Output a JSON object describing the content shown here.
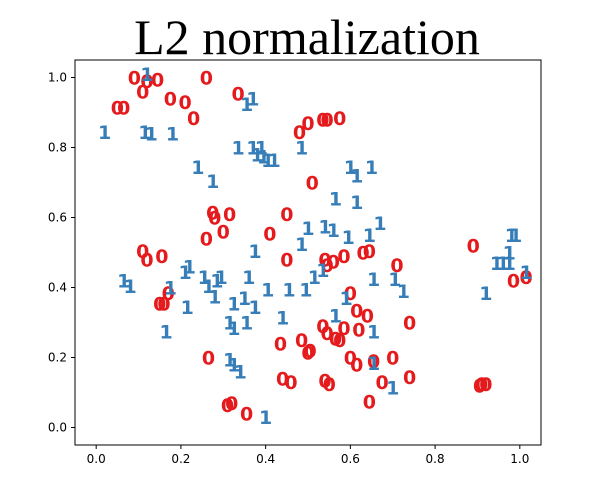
{
  "chart_data": {
    "type": "scatter",
    "title": "L2 normalization",
    "xlabel": "",
    "ylabel": "",
    "xlim": [
      -0.05,
      1.05
    ],
    "ylim": [
      -0.05,
      1.05
    ],
    "xticks": [
      "0.0",
      "0.2",
      "0.4",
      "0.6",
      "0.8",
      "1.0"
    ],
    "yticks": [
      "0.0",
      "0.2",
      "0.4",
      "0.6",
      "0.8",
      "1.0"
    ],
    "grid": false,
    "legend": "none",
    "marker_style": "text glyph of class label",
    "series": [
      {
        "label_text": "0",
        "color": "#e41a1c",
        "points": [
          [
            0.09,
            1.0
          ],
          [
            0.12,
            0.99
          ],
          [
            0.145,
            0.995
          ],
          [
            0.26,
            1.0
          ],
          [
            0.11,
            0.96
          ],
          [
            0.335,
            0.955
          ],
          [
            0.05,
            0.915
          ],
          [
            0.065,
            0.915
          ],
          [
            0.175,
            0.94
          ],
          [
            0.21,
            0.93
          ],
          [
            0.23,
            0.885
          ],
          [
            0.48,
            0.845
          ],
          [
            0.5,
            0.87
          ],
          [
            0.535,
            0.88
          ],
          [
            0.545,
            0.88
          ],
          [
            0.575,
            0.885
          ],
          [
            0.51,
            0.7
          ],
          [
            0.275,
            0.615
          ],
          [
            0.28,
            0.6
          ],
          [
            0.315,
            0.61
          ],
          [
            0.45,
            0.61
          ],
          [
            0.3,
            0.56
          ],
          [
            0.26,
            0.54
          ],
          [
            0.41,
            0.555
          ],
          [
            0.11,
            0.505
          ],
          [
            0.12,
            0.48
          ],
          [
            0.155,
            0.49
          ],
          [
            0.45,
            0.48
          ],
          [
            0.54,
            0.48
          ],
          [
            0.545,
            0.465
          ],
          [
            0.56,
            0.475
          ],
          [
            0.585,
            0.49
          ],
          [
            0.63,
            0.5
          ],
          [
            0.645,
            0.505
          ],
          [
            0.71,
            0.465
          ],
          [
            0.89,
            0.52
          ],
          [
            0.985,
            0.42
          ],
          [
            1.015,
            0.43
          ],
          [
            0.17,
            0.385
          ],
          [
            0.15,
            0.355
          ],
          [
            0.16,
            0.355
          ],
          [
            0.6,
            0.385
          ],
          [
            0.615,
            0.335
          ],
          [
            0.64,
            0.32
          ],
          [
            0.74,
            0.3
          ],
          [
            0.535,
            0.29
          ],
          [
            0.545,
            0.27
          ],
          [
            0.585,
            0.285
          ],
          [
            0.62,
            0.28
          ],
          [
            0.565,
            0.255
          ],
          [
            0.575,
            0.25
          ],
          [
            0.265,
            0.2
          ],
          [
            0.435,
            0.24
          ],
          [
            0.485,
            0.25
          ],
          [
            0.5,
            0.215
          ],
          [
            0.505,
            0.22
          ],
          [
            0.6,
            0.2
          ],
          [
            0.615,
            0.18
          ],
          [
            0.655,
            0.19
          ],
          [
            0.7,
            0.2
          ],
          [
            0.44,
            0.14
          ],
          [
            0.46,
            0.13
          ],
          [
            0.54,
            0.135
          ],
          [
            0.55,
            0.125
          ],
          [
            0.675,
            0.13
          ],
          [
            0.74,
            0.145
          ],
          [
            0.905,
            0.12
          ],
          [
            0.91,
            0.125
          ],
          [
            0.92,
            0.125
          ],
          [
            0.31,
            0.065
          ],
          [
            0.32,
            0.07
          ],
          [
            0.355,
            0.04
          ],
          [
            0.645,
            0.075
          ]
        ]
      },
      {
        "label_text": "1",
        "color": "#377eb8",
        "points": [
          [
            0.12,
            1.01
          ],
          [
            0.355,
            0.925
          ],
          [
            0.37,
            0.94
          ],
          [
            0.02,
            0.845
          ],
          [
            0.115,
            0.845
          ],
          [
            0.13,
            0.84
          ],
          [
            0.18,
            0.84
          ],
          [
            0.37,
            0.8
          ],
          [
            0.39,
            0.8
          ],
          [
            0.395,
            0.775
          ],
          [
            0.335,
            0.8
          ],
          [
            0.38,
            0.78
          ],
          [
            0.405,
            0.765
          ],
          [
            0.42,
            0.765
          ],
          [
            0.485,
            0.8
          ],
          [
            0.24,
            0.745
          ],
          [
            0.275,
            0.705
          ],
          [
            0.6,
            0.745
          ],
          [
            0.615,
            0.72
          ],
          [
            0.65,
            0.745
          ],
          [
            0.565,
            0.655
          ],
          [
            0.615,
            0.645
          ],
          [
            0.67,
            0.585
          ],
          [
            0.54,
            0.575
          ],
          [
            0.5,
            0.57
          ],
          [
            0.56,
            0.565
          ],
          [
            0.595,
            0.545
          ],
          [
            0.645,
            0.55
          ],
          [
            0.485,
            0.525
          ],
          [
            0.375,
            0.505
          ],
          [
            0.22,
            0.46
          ],
          [
            0.535,
            0.45
          ],
          [
            0.21,
            0.445
          ],
          [
            0.255,
            0.43
          ],
          [
            0.295,
            0.43
          ],
          [
            0.36,
            0.43
          ],
          [
            0.515,
            0.43
          ],
          [
            0.655,
            0.425
          ],
          [
            0.705,
            0.425
          ],
          [
            0.065,
            0.42
          ],
          [
            0.08,
            0.405
          ],
          [
            0.175,
            0.4
          ],
          [
            0.265,
            0.405
          ],
          [
            0.285,
            0.42
          ],
          [
            0.405,
            0.395
          ],
          [
            0.455,
            0.395
          ],
          [
            0.495,
            0.395
          ],
          [
            0.28,
            0.375
          ],
          [
            0.35,
            0.37
          ],
          [
            0.59,
            0.37
          ],
          [
            0.725,
            0.39
          ],
          [
            0.945,
            0.47
          ],
          [
            0.96,
            0.47
          ],
          [
            0.975,
            0.47
          ],
          [
            0.98,
            0.55
          ],
          [
            0.99,
            0.55
          ],
          [
            0.975,
            0.5
          ],
          [
            1.015,
            0.445
          ],
          [
            0.92,
            0.385
          ],
          [
            0.215,
            0.345
          ],
          [
            0.325,
            0.355
          ],
          [
            0.375,
            0.345
          ],
          [
            0.44,
            0.315
          ],
          [
            0.565,
            0.32
          ],
          [
            0.315,
            0.3
          ],
          [
            0.355,
            0.3
          ],
          [
            0.165,
            0.275
          ],
          [
            0.325,
            0.285
          ],
          [
            0.655,
            0.275
          ],
          [
            0.315,
            0.195
          ],
          [
            0.325,
            0.18
          ],
          [
            0.34,
            0.16
          ],
          [
            0.655,
            0.185
          ],
          [
            0.7,
            0.115
          ],
          [
            0.4,
            0.03
          ]
        ]
      }
    ]
  }
}
